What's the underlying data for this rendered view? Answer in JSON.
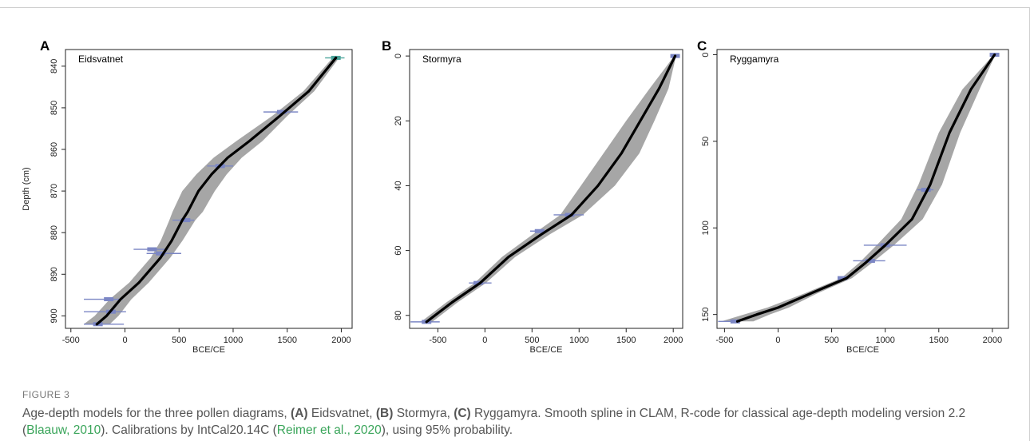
{
  "figure": {
    "label": "FIGURE 3",
    "caption": {
      "p1": "Age-depth models for the three pollen diagrams, ",
      "a": "(A)",
      "p2": " Eidsvatnet, ",
      "b": "(B)",
      "p3": " Stormyra, ",
      "c": "(C)",
      "p4": " Ryggamyra. Smooth spline in CLAM, R-code for classical age-depth modeling version 2.2 (",
      "ref1": "Blaauw, 2010",
      "p5": "). Calibrations by IntCal20.14C (",
      "ref2": "Reimer et al., 2020",
      "p6": "), using 95% probability."
    }
  },
  "colors": {
    "envelope": "#a6a6a6",
    "spline": "#000000",
    "date_bar": "#7b86c4",
    "date_top": "#4aa39a",
    "axis": "#222222"
  },
  "chart_data": [
    {
      "type": "line",
      "panel_letter": "A",
      "site": "Eidsvatnet",
      "xlabel": "BCE/CE",
      "ylabel": "Depth (cm)",
      "xlim": [
        -550,
        2100
      ],
      "ylim": [
        836,
        903
      ],
      "y_reversed": true,
      "xticks": [
        -500,
        0,
        500,
        1000,
        1500,
        2000
      ],
      "yticks": [
        840,
        850,
        860,
        870,
        880,
        890,
        900
      ],
      "spline": [
        [
          1950,
          838
        ],
        [
          1700,
          846
        ],
        [
          1430,
          852
        ],
        [
          1150,
          858
        ],
        [
          950,
          862
        ],
        [
          800,
          866
        ],
        [
          680,
          870
        ],
        [
          580,
          875
        ],
        [
          530,
          877
        ],
        [
          430,
          882
        ],
        [
          330,
          886
        ],
        [
          130,
          892
        ],
        [
          -40,
          896
        ],
        [
          -170,
          900
        ],
        [
          -260,
          902
        ]
      ],
      "envelope_halfwidth": [
        30,
        50,
        70,
        120,
        130,
        140,
        150,
        140,
        120,
        100,
        90,
        90,
        100,
        110,
        120
      ],
      "dates": [
        {
          "age": 1950,
          "depth": 838,
          "min": 1850,
          "max": 2030
        },
        {
          "age": 1450,
          "depth": 851,
          "min": 1280,
          "max": 1600
        },
        {
          "age": 880,
          "depth": 864,
          "min": 760,
          "max": 1000
        },
        {
          "age": 560,
          "depth": 877,
          "min": 440,
          "max": 640
        },
        {
          "age": 250,
          "depth": 884,
          "min": 80,
          "max": 400
        },
        {
          "age": 330,
          "depth": 885,
          "min": 200,
          "max": 520
        },
        {
          "age": -150,
          "depth": 896,
          "min": -380,
          "max": -20
        },
        {
          "age": -130,
          "depth": 899,
          "min": -380,
          "max": 10
        },
        {
          "age": -250,
          "depth": 902,
          "min": -380,
          "max": -10
        }
      ]
    },
    {
      "type": "line",
      "panel_letter": "B",
      "site": "Stormyra",
      "xlabel": "BCE/CE",
      "ylabel": "",
      "xlim": [
        -800,
        2100
      ],
      "ylim": [
        -2,
        84
      ],
      "y_reversed": true,
      "xticks": [
        -500,
        0,
        500,
        1000,
        1500,
        2000
      ],
      "yticks": [
        0,
        20,
        40,
        60,
        80
      ],
      "spline": [
        [
          2020,
          0
        ],
        [
          1850,
          10
        ],
        [
          1650,
          20
        ],
        [
          1450,
          30
        ],
        [
          1200,
          40
        ],
        [
          920,
          49
        ],
        [
          600,
          55
        ],
        [
          250,
          62
        ],
        [
          -50,
          70
        ],
        [
          -350,
          76
        ],
        [
          -620,
          82
        ]
      ],
      "envelope_halfwidth": [
        10,
        100,
        150,
        190,
        180,
        120,
        90,
        70,
        60,
        60,
        60
      ],
      "dates": [
        {
          "age": 2020,
          "depth": 0,
          "min": 2005,
          "max": 2030
        },
        {
          "age": 900,
          "depth": 49,
          "min": 730,
          "max": 1050
        },
        {
          "age": 580,
          "depth": 54,
          "min": 480,
          "max": 640
        },
        {
          "age": -70,
          "depth": 70,
          "min": -170,
          "max": 70
        },
        {
          "age": -620,
          "depth": 82,
          "min": -790,
          "max": -480
        }
      ]
    },
    {
      "type": "line",
      "panel_letter": "C",
      "site": "Ryggamyra",
      "xlabel": "BCE/CE",
      "ylabel": "",
      "xlim": [
        -570,
        2150
      ],
      "ylim": [
        -3,
        158
      ],
      "y_reversed": true,
      "xticks": [
        -500,
        0,
        500,
        1000,
        1500,
        2000
      ],
      "yticks": [
        0,
        50,
        100,
        150
      ],
      "spline": [
        [
          2020,
          0
        ],
        [
          1800,
          20
        ],
        [
          1600,
          45
        ],
        [
          1420,
          75
        ],
        [
          1250,
          95
        ],
        [
          1000,
          110
        ],
        [
          820,
          120
        ],
        [
          640,
          129
        ],
        [
          300,
          138
        ],
        [
          0,
          146
        ],
        [
          -200,
          150
        ],
        [
          -380,
          154
        ]
      ],
      "envelope_halfwidth": [
        8,
        80,
        100,
        110,
        100,
        80,
        60,
        50,
        60,
        100,
        120,
        150
      ],
      "dates": [
        {
          "age": 2020,
          "depth": 0,
          "min": 2005,
          "max": 2030
        },
        {
          "age": 1380,
          "depth": 78,
          "min": 1300,
          "max": 1450
        },
        {
          "age": 1000,
          "depth": 110,
          "min": 800,
          "max": 1200
        },
        {
          "age": 860,
          "depth": 119,
          "min": 700,
          "max": 1000
        },
        {
          "age": 600,
          "depth": 129,
          "min": 560,
          "max": 660
        },
        {
          "age": -400,
          "depth": 154,
          "min": -560,
          "max": -360
        }
      ]
    }
  ]
}
